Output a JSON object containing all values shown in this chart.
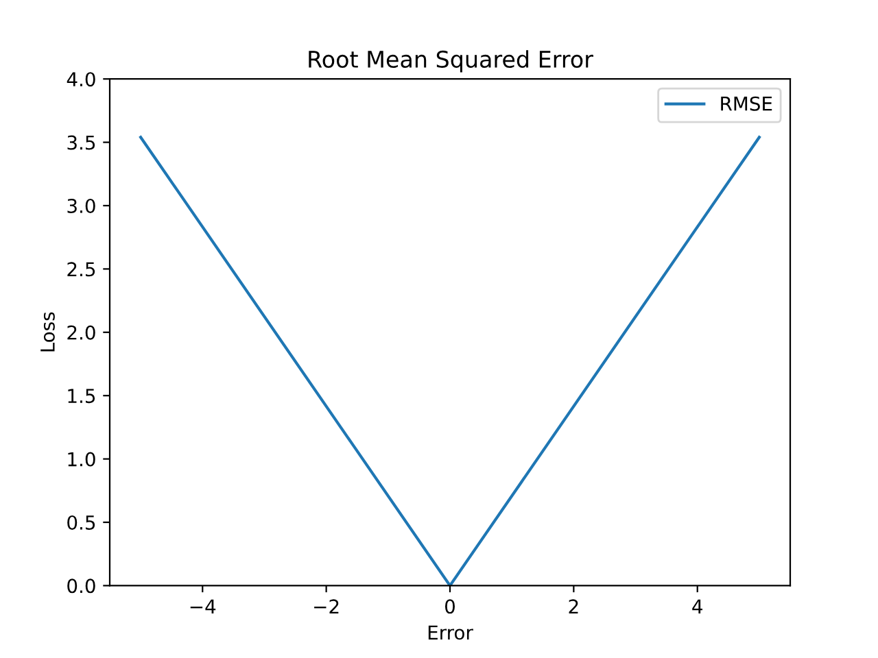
{
  "chart_data": {
    "type": "line",
    "title": "Root Mean Squared Error",
    "xlabel": "Error",
    "ylabel": "Loss",
    "x": [
      -5,
      0,
      5
    ],
    "series": [
      {
        "name": "RMSE",
        "color": "#1f77b4",
        "values": [
          3.54,
          0,
          3.54
        ]
      }
    ],
    "xlim": [
      -5.5,
      5.5
    ],
    "xticks": [
      {
        "value": -4,
        "label": "−4"
      },
      {
        "value": -2,
        "label": "−2"
      },
      0,
      2,
      4
    ],
    "ylim": [
      0,
      4
    ],
    "yticks": [
      {
        "value": 0,
        "label": "0.0"
      },
      {
        "value": 0.5,
        "label": "0.5"
      },
      {
        "value": 1,
        "label": "1.0"
      },
      {
        "value": 1.5,
        "label": "1.5"
      },
      {
        "value": 2,
        "label": "2.0"
      },
      {
        "value": 2.5,
        "label": "2.5"
      },
      {
        "value": 3,
        "label": "3.0"
      },
      {
        "value": 3.5,
        "label": "3.5"
      },
      {
        "value": 4,
        "label": "4.0"
      }
    ],
    "grid": false,
    "legend": "top right",
    "marker": "none",
    "line_style": "solid"
  }
}
